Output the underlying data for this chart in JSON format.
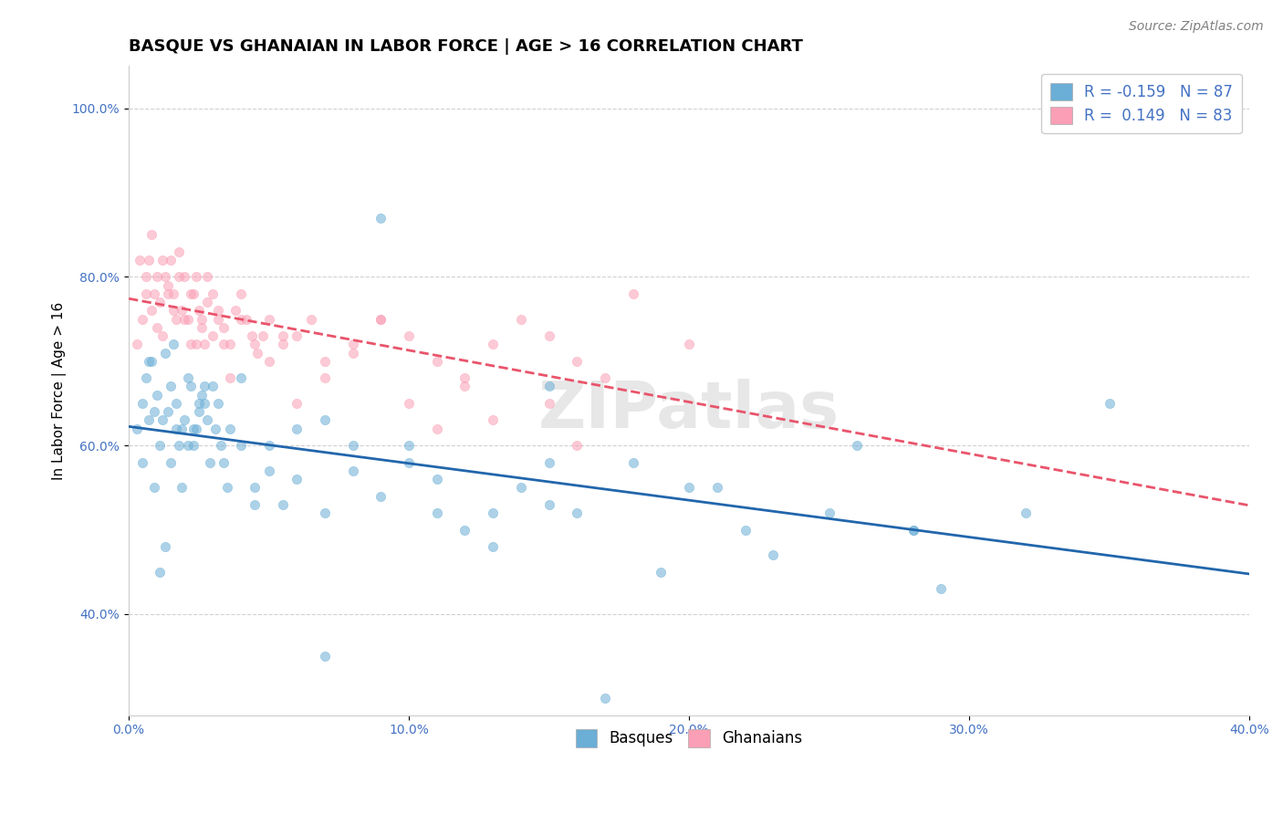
{
  "title": "BASQUE VS GHANAIAN IN LABOR FORCE | AGE > 16 CORRELATION CHART",
  "source_text": "Source: ZipAtlas.com",
  "ylabel": "In Labor Force | Age > 16",
  "xlim": [
    0.0,
    0.4
  ],
  "ylim": [
    0.28,
    1.05
  ],
  "xticks": [
    0.0,
    0.1,
    0.2,
    0.3,
    0.4
  ],
  "xtick_labels": [
    "0.0%",
    "10.0%",
    "20.0%",
    "30.0%",
    "40.0%"
  ],
  "yticks": [
    0.4,
    0.6,
    0.8,
    1.0
  ],
  "ytick_labels": [
    "40.0%",
    "60.0%",
    "80.0%",
    "100.0%"
  ],
  "background_color": "#ffffff",
  "grid_color": "#cccccc",
  "legend_r1": "R = -0.159   N = 87",
  "legend_r2": "R =  0.149   N = 83",
  "blue_color": "#6baed6",
  "pink_color": "#fa9fb5",
  "blue_line_color": "#2166ac",
  "pink_line_color": "#e9546b",
  "tick_color": "#4472c4",
  "basques_x": [
    0.003,
    0.005,
    0.006,
    0.007,
    0.008,
    0.009,
    0.01,
    0.011,
    0.012,
    0.013,
    0.014,
    0.015,
    0.016,
    0.017,
    0.018,
    0.019,
    0.02,
    0.021,
    0.022,
    0.023,
    0.024,
    0.025,
    0.026,
    0.027,
    0.028,
    0.03,
    0.032,
    0.034,
    0.036,
    0.04,
    0.045,
    0.05,
    0.055,
    0.06,
    0.07,
    0.08,
    0.09,
    0.1,
    0.11,
    0.12,
    0.13,
    0.14,
    0.15,
    0.16,
    0.18,
    0.2,
    0.22,
    0.25,
    0.28,
    0.005,
    0.007,
    0.009,
    0.011,
    0.013,
    0.015,
    0.017,
    0.019,
    0.021,
    0.023,
    0.025,
    0.027,
    0.029,
    0.031,
    0.033,
    0.035,
    0.04,
    0.045,
    0.05,
    0.06,
    0.07,
    0.08,
    0.09,
    0.1,
    0.11,
    0.13,
    0.15,
    0.17,
    0.19,
    0.21,
    0.23,
    0.26,
    0.29,
    0.32,
    0.35,
    0.28,
    0.15,
    0.07
  ],
  "basques_y": [
    0.62,
    0.65,
    0.68,
    0.63,
    0.7,
    0.64,
    0.66,
    0.6,
    0.63,
    0.71,
    0.64,
    0.67,
    0.72,
    0.65,
    0.6,
    0.62,
    0.63,
    0.68,
    0.67,
    0.6,
    0.62,
    0.64,
    0.66,
    0.65,
    0.63,
    0.67,
    0.65,
    0.58,
    0.62,
    0.6,
    0.55,
    0.57,
    0.53,
    0.56,
    0.52,
    0.6,
    0.54,
    0.58,
    0.52,
    0.5,
    0.48,
    0.55,
    0.53,
    0.52,
    0.58,
    0.55,
    0.5,
    0.52,
    0.5,
    0.58,
    0.7,
    0.55,
    0.45,
    0.48,
    0.58,
    0.62,
    0.55,
    0.6,
    0.62,
    0.65,
    0.67,
    0.58,
    0.62,
    0.6,
    0.55,
    0.68,
    0.53,
    0.6,
    0.62,
    0.63,
    0.57,
    0.87,
    0.6,
    0.56,
    0.52,
    0.58,
    0.3,
    0.45,
    0.55,
    0.47,
    0.6,
    0.43,
    0.52,
    0.65,
    0.5,
    0.67,
    0.35
  ],
  "ghanaians_x": [
    0.003,
    0.005,
    0.006,
    0.007,
    0.008,
    0.009,
    0.01,
    0.011,
    0.012,
    0.013,
    0.014,
    0.015,
    0.016,
    0.017,
    0.018,
    0.019,
    0.02,
    0.021,
    0.022,
    0.023,
    0.024,
    0.025,
    0.026,
    0.027,
    0.028,
    0.03,
    0.032,
    0.034,
    0.036,
    0.04,
    0.045,
    0.05,
    0.055,
    0.06,
    0.07,
    0.08,
    0.09,
    0.1,
    0.11,
    0.12,
    0.13,
    0.15,
    0.16,
    0.004,
    0.006,
    0.008,
    0.01,
    0.012,
    0.014,
    0.016,
    0.018,
    0.02,
    0.022,
    0.024,
    0.026,
    0.028,
    0.03,
    0.032,
    0.034,
    0.036,
    0.038,
    0.04,
    0.042,
    0.044,
    0.046,
    0.048,
    0.05,
    0.055,
    0.06,
    0.065,
    0.07,
    0.08,
    0.09,
    0.1,
    0.11,
    0.12,
    0.13,
    0.14,
    0.15,
    0.16,
    0.17,
    0.18,
    0.2
  ],
  "ghanaians_y": [
    0.72,
    0.75,
    0.8,
    0.82,
    0.76,
    0.78,
    0.74,
    0.77,
    0.73,
    0.8,
    0.79,
    0.82,
    0.78,
    0.75,
    0.83,
    0.76,
    0.8,
    0.75,
    0.72,
    0.78,
    0.8,
    0.76,
    0.74,
    0.72,
    0.77,
    0.73,
    0.75,
    0.72,
    0.68,
    0.75,
    0.72,
    0.7,
    0.73,
    0.65,
    0.68,
    0.71,
    0.75,
    0.65,
    0.62,
    0.67,
    0.63,
    0.65,
    0.6,
    0.82,
    0.78,
    0.85,
    0.8,
    0.82,
    0.78,
    0.76,
    0.8,
    0.75,
    0.78,
    0.72,
    0.75,
    0.8,
    0.78,
    0.76,
    0.74,
    0.72,
    0.76,
    0.78,
    0.75,
    0.73,
    0.71,
    0.73,
    0.75,
    0.72,
    0.73,
    0.75,
    0.7,
    0.72,
    0.75,
    0.73,
    0.7,
    0.68,
    0.72,
    0.75,
    0.73,
    0.7,
    0.68,
    0.78,
    0.72
  ],
  "title_fontsize": 13,
  "axis_fontsize": 11,
  "tick_fontsize": 10,
  "legend_fontsize": 12,
  "source_fontsize": 10,
  "scatter_alpha": 0.55,
  "scatter_size": 55
}
